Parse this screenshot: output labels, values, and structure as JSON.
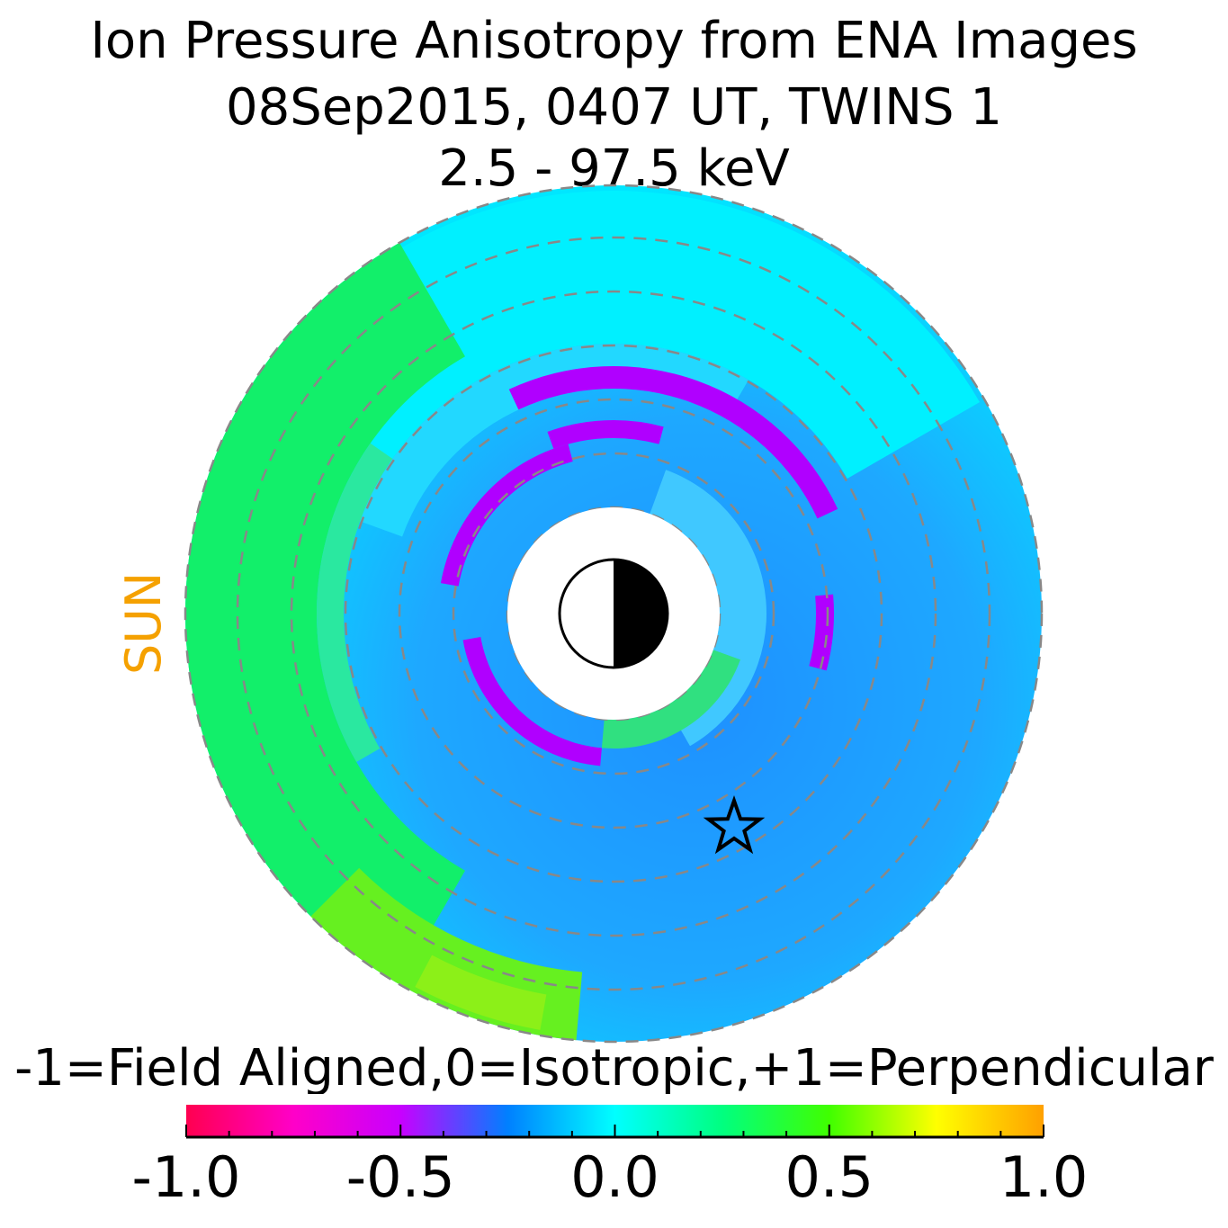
{
  "title": {
    "line1": "Ion Pressure Anisotropy from  ENA Images",
    "line2": "08Sep2015, 0407 UT,  TWINS 1",
    "line3": "2.5 - 97.5 keV"
  },
  "sun_label": "SUN",
  "colors": {
    "sun_label": "#f5a100",
    "field_aligned": "#ff0055",
    "isotropic": "#b000ff",
    "perpendicular": "#ffa500",
    "ring_guides": "#888888"
  },
  "chart_data": {
    "type": "heatmap",
    "projection": "polar equatorial map, sun to the left",
    "ring_guides": "dashed circles",
    "colorbar": {
      "label": "-1=Field Aligned,0=Isotropic,+1=Perpendicular",
      "min": -1.0,
      "max": 1.0,
      "tick_labels": [
        "-1.0",
        "-0.5",
        "0.0",
        "0.5",
        "1.0"
      ],
      "tick_values": [
        -1.0,
        -0.5,
        0.0,
        0.5,
        1.0
      ],
      "colormap": [
        "#ff0050",
        "#ff00c8",
        "#c800ff",
        "#0080ff",
        "#00ffff",
        "#00ff80",
        "#40ff00",
        "#ffff00",
        "#ffa000"
      ]
    },
    "markers": [
      {
        "shape": "star",
        "meaning": "spacecraft position"
      },
      {
        "shape": "earth",
        "day_side": "left",
        "night_side": "right"
      }
    ]
  }
}
